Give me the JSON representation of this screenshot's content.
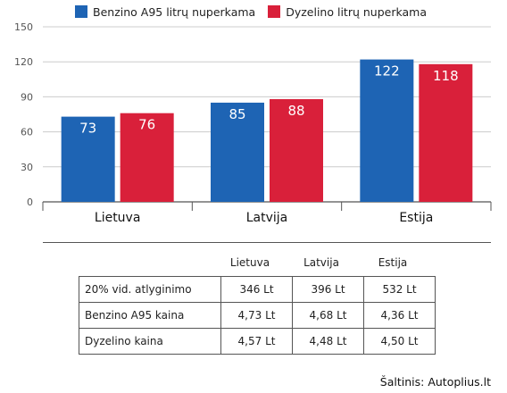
{
  "chart_data": {
    "type": "bar",
    "categories": [
      "Lietuva",
      "Latvija",
      "Estija"
    ],
    "series": [
      {
        "name": "Benzino A95 litrų nuperkama",
        "values": [
          73,
          85,
          122
        ],
        "color": "#1e64b4"
      },
      {
        "name": "Dyzelino litrų nuperkama",
        "values": [
          76,
          88,
          118
        ],
        "color": "#d9203a"
      }
    ],
    "value_labels": [
      [
        "73",
        "85",
        "122"
      ],
      [
        "76",
        "88",
        "118"
      ]
    ],
    "ylim": [
      0,
      150
    ],
    "yticks": [
      0,
      30,
      60,
      90,
      120,
      150
    ],
    "ytick_labels": [
      "0",
      "30",
      "60",
      "90",
      "120",
      "150"
    ],
    "grid": true,
    "legend_position": "top"
  },
  "table": {
    "columns": [
      "Lietuva",
      "Latvija",
      "Estija"
    ],
    "rows": [
      {
        "label": "20% vid. atlyginimo",
        "values": [
          "346 Lt",
          "396 Lt",
          "532 Lt"
        ]
      },
      {
        "label": "Benzino A95 kaina",
        "values": [
          "4,73 Lt",
          "4,68 Lt",
          "4,36 Lt"
        ]
      },
      {
        "label": "Dyzelino kaina",
        "values": [
          "4,57 Lt",
          "4,48 Lt",
          "4,50 Lt"
        ]
      }
    ]
  },
  "source": "Šaltinis: Autoplius.lt"
}
